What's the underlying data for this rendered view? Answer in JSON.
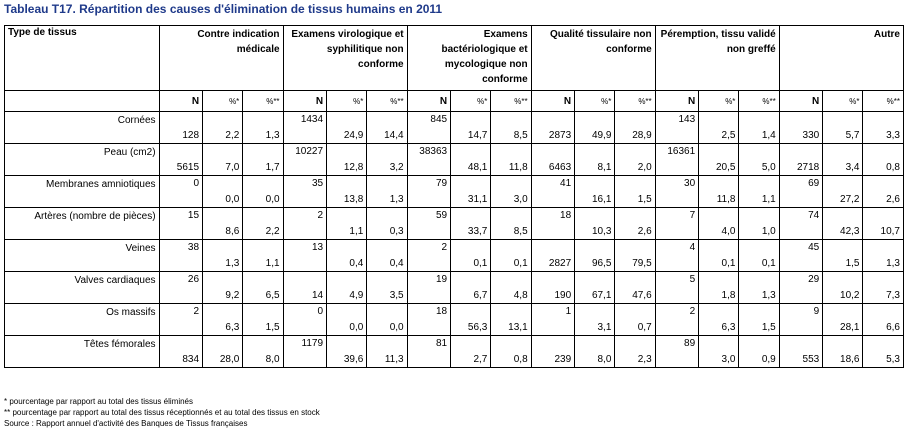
{
  "title": "Tableau T17. Répartition des causes d'élimination de tissus humains en 2011",
  "header": {
    "type_label": "Type de tissus",
    "groups": [
      "Contre indication médicale",
      "Examens virologique et syphilitique non conforme",
      "Examens bactériologique et mycologique non conforme",
      "Qualité tissulaire non conforme",
      "Péremption, tissu validé non greffé",
      "Autre"
    ],
    "sub": {
      "n": "N",
      "pct1": "%*",
      "pct2": "%**"
    }
  },
  "rows": [
    {
      "label": "Cornées",
      "cells": [
        {
          "n": "128",
          "pos": "bot",
          "p1": "2,2",
          "p2": "1,3"
        },
        {
          "n": "1434",
          "pos": "top",
          "p1": "24,9",
          "p2": "14,4"
        },
        {
          "n": "845",
          "pos": "top",
          "p1": "14,7",
          "p2": "8,5"
        },
        {
          "n": "2873",
          "pos": "bot",
          "p1": "49,9",
          "p2": "28,9"
        },
        {
          "n": "143",
          "pos": "top",
          "p1": "2,5",
          "p2": "1,4"
        },
        {
          "n": "330",
          "pos": "bot",
          "p1": "5,7",
          "p2": "3,3"
        }
      ]
    },
    {
      "label": "Peau (cm2)",
      "cells": [
        {
          "n": "5615",
          "pos": "bot",
          "p1": "7,0",
          "p2": "1,7"
        },
        {
          "n": "10227",
          "pos": "top",
          "p1": "12,8",
          "p2": "3,2"
        },
        {
          "n": "38363",
          "pos": "top",
          "p1": "48,1",
          "p2": "11,8"
        },
        {
          "n": "6463",
          "pos": "bot",
          "p1": "8,1",
          "p2": "2,0"
        },
        {
          "n": "16361",
          "pos": "top",
          "p1": "20,5",
          "p2": "5,0"
        },
        {
          "n": "2718",
          "pos": "bot",
          "p1": "3,4",
          "p2": "0,8"
        }
      ]
    },
    {
      "label": "Membranes amniotiques",
      "cells": [
        {
          "n": "0",
          "pos": "top",
          "p1": "0,0",
          "p2": "0,0"
        },
        {
          "n": "35",
          "pos": "top",
          "p1": "13,8",
          "p2": "1,3"
        },
        {
          "n": "79",
          "pos": "top",
          "p1": "31,1",
          "p2": "3,0"
        },
        {
          "n": "41",
          "pos": "top",
          "p1": "16,1",
          "p2": "1,5"
        },
        {
          "n": "30",
          "pos": "top",
          "p1": "11,8",
          "p2": "1,1"
        },
        {
          "n": "69",
          "pos": "top",
          "p1": "27,2",
          "p2": "2,6"
        }
      ]
    },
    {
      "label": "Artères (nombre de pièces)",
      "cells": [
        {
          "n": "15",
          "pos": "top",
          "p1": "8,6",
          "p2": "2,2"
        },
        {
          "n": "2",
          "pos": "top",
          "p1": "1,1",
          "p2": "0,3"
        },
        {
          "n": "59",
          "pos": "top",
          "p1": "33,7",
          "p2": "8,5"
        },
        {
          "n": "18",
          "pos": "top",
          "p1": "10,3",
          "p2": "2,6"
        },
        {
          "n": "7",
          "pos": "top",
          "p1": "4,0",
          "p2": "1,0"
        },
        {
          "n": "74",
          "pos": "top",
          "p1": "42,3",
          "p2": "10,7"
        }
      ]
    },
    {
      "label": "Veines",
      "cells": [
        {
          "n": "38",
          "pos": "top",
          "p1": "1,3",
          "p2": "1,1"
        },
        {
          "n": "13",
          "pos": "top",
          "p1": "0,4",
          "p2": "0,4"
        },
        {
          "n": "2",
          "pos": "top",
          "p1": "0,1",
          "p2": "0,1"
        },
        {
          "n": "2827",
          "pos": "bot",
          "p1": "96,5",
          "p2": "79,5"
        },
        {
          "n": "4",
          "pos": "top",
          "p1": "0,1",
          "p2": "0,1"
        },
        {
          "n": "45",
          "pos": "top",
          "p1": "1,5",
          "p2": "1,3"
        }
      ]
    },
    {
      "label": "Valves cardiaques",
      "cells": [
        {
          "n": "26",
          "pos": "top",
          "p1": "9,2",
          "p2": "6,5"
        },
        {
          "n": "14",
          "pos": "bot",
          "p1": "4,9",
          "p2": "3,5"
        },
        {
          "n": "19",
          "pos": "top",
          "p1": "6,7",
          "p2": "4,8"
        },
        {
          "n": "190",
          "pos": "bot",
          "p1": "67,1",
          "p2": "47,6"
        },
        {
          "n": "5",
          "pos": "top",
          "p1": "1,8",
          "p2": "1,3"
        },
        {
          "n": "29",
          "pos": "top",
          "p1": "10,2",
          "p2": "7,3"
        }
      ]
    },
    {
      "label": "Os massifs",
      "cells": [
        {
          "n": "2",
          "pos": "top",
          "p1": "6,3",
          "p2": "1,5"
        },
        {
          "n": "0",
          "pos": "top",
          "p1": "0,0",
          "p2": "0,0"
        },
        {
          "n": "18",
          "pos": "top",
          "p1": "56,3",
          "p2": "13,1"
        },
        {
          "n": "1",
          "pos": "top",
          "p1": "3,1",
          "p2": "0,7"
        },
        {
          "n": "2",
          "pos": "top",
          "p1": "6,3",
          "p2": "1,5"
        },
        {
          "n": "9",
          "pos": "top",
          "p1": "28,1",
          "p2": "6,6"
        }
      ]
    },
    {
      "label": "Têtes fémorales",
      "cells": [
        {
          "n": "834",
          "pos": "bot",
          "p1": "28,0",
          "p2": "8,0"
        },
        {
          "n": "1179",
          "pos": "top",
          "p1": "39,6",
          "p2": "11,3"
        },
        {
          "n": "81",
          "pos": "top",
          "p1": "2,7",
          "p2": "0,8"
        },
        {
          "n": "239",
          "pos": "bot",
          "p1": "8,0",
          "p2": "2,3"
        },
        {
          "n": "89",
          "pos": "top",
          "p1": "3,0",
          "p2": "0,9"
        },
        {
          "n": "553",
          "pos": "bot",
          "p1": "18,6",
          "p2": "5,3"
        }
      ]
    }
  ],
  "notes": [
    "* pourcentage par rapport au total des tissus éliminés",
    "** pourcentage par rapport au total des tissus réceptionnés et au total des tissus en stock",
    "Source : Rapport annuel d'activité des Banques de Tissus françaises"
  ]
}
